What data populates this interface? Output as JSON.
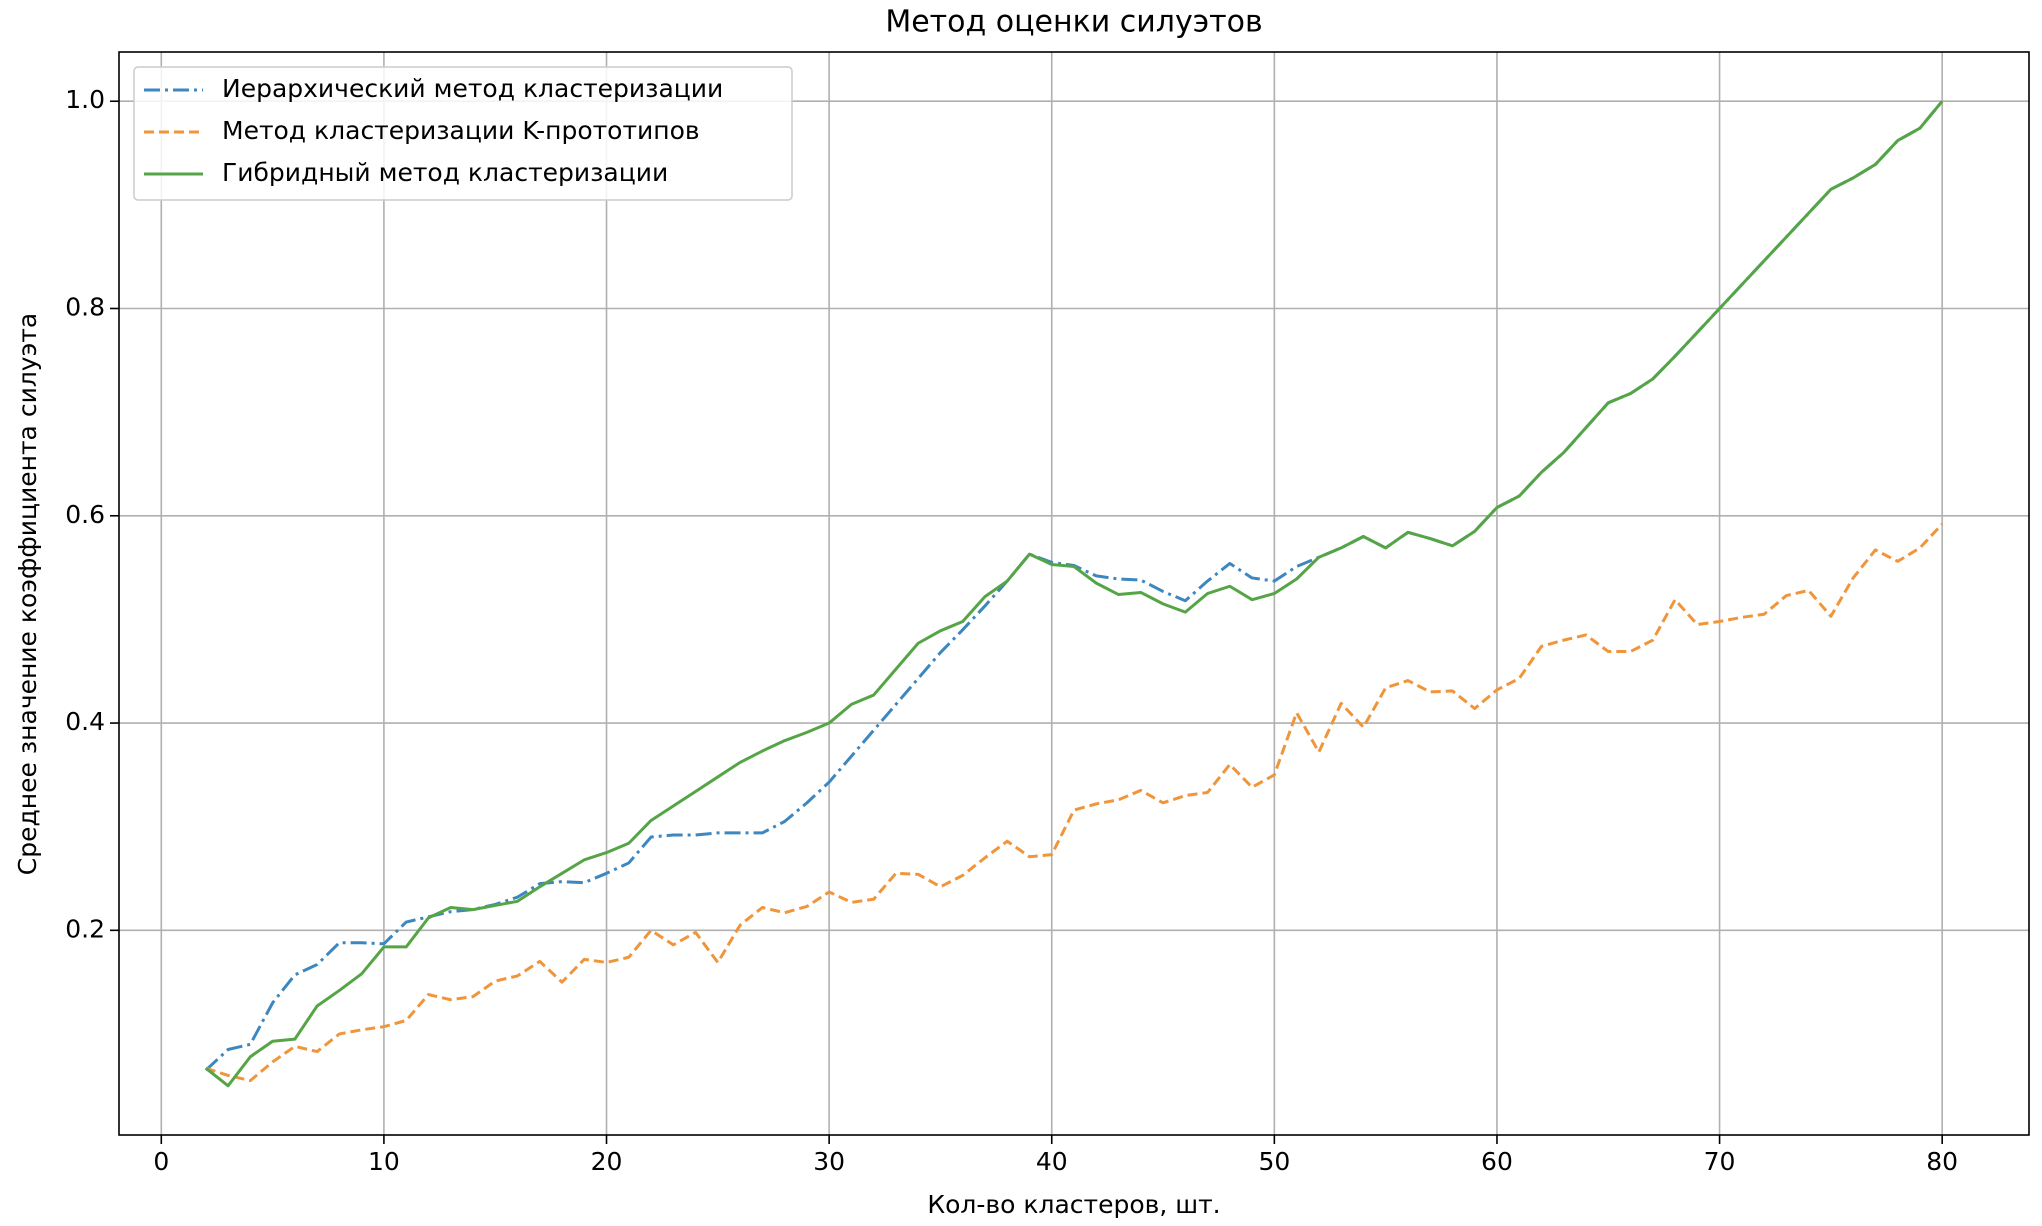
{
  "chart_data": {
    "type": "line",
    "title": "Метод оценки силуэтов",
    "x_label": "Кол-во кластеров, шт.",
    "y_label": "Среднее значение коэффициента силуэта",
    "x": [
      2,
      3,
      4,
      5,
      6,
      7,
      8,
      9,
      10,
      11,
      12,
      13,
      14,
      15,
      16,
      17,
      18,
      19,
      20,
      21,
      22,
      23,
      24,
      25,
      26,
      27,
      28,
      29,
      30,
      31,
      32,
      33,
      34,
      35,
      36,
      37,
      38,
      39,
      40,
      41,
      42,
      43,
      44,
      45,
      46,
      47,
      48,
      49,
      50,
      51,
      52,
      53,
      54,
      55,
      56,
      57,
      58,
      59,
      60,
      61,
      62,
      63,
      64,
      65,
      66,
      67,
      68,
      69,
      70,
      71,
      72,
      73,
      74,
      75,
      76,
      77,
      78,
      79,
      80
    ],
    "series": [
      {
        "name": "Иерархический метод кластеризации",
        "color": "#3d87c0",
        "linestyle": "dashdot",
        "values": [
          0.065,
          0.085,
          0.09,
          0.13,
          0.157,
          0.167,
          0.188,
          0.188,
          0.187,
          0.208,
          0.213,
          0.218,
          0.22,
          0.225,
          0.232,
          0.245,
          0.247,
          0.246,
          0.255,
          0.265,
          0.29,
          0.292,
          0.292,
          0.294,
          0.294,
          0.294,
          0.305,
          0.323,
          0.343,
          0.368,
          0.393,
          0.418,
          0.443,
          0.468,
          0.49,
          0.513,
          0.537,
          0.563,
          0.555,
          0.552,
          0.542,
          0.539,
          0.538,
          0.527,
          0.518,
          0.537,
          0.554,
          0.54,
          0.537,
          0.551,
          0.56,
          0.569,
          0.58,
          0.569,
          0.584,
          0.578,
          0.571,
          0.585,
          0.608,
          0.619,
          0.642,
          0.661,
          0.685,
          0.709,
          0.718,
          0.732,
          0.754,
          0.777,
          0.8,
          0.823,
          0.846,
          0.869,
          0.892,
          0.915,
          0.926,
          0.939,
          0.962,
          0.974,
          1.0
        ]
      },
      {
        "name": "Метод кластеризации K-прототипов",
        "color": "#f0953a",
        "linestyle": "dashed",
        "values": [
          0.067,
          0.06,
          0.055,
          0.073,
          0.088,
          0.083,
          0.1,
          0.104,
          0.107,
          0.113,
          0.138,
          0.133,
          0.136,
          0.151,
          0.156,
          0.17,
          0.15,
          0.172,
          0.169,
          0.174,
          0.2,
          0.186,
          0.198,
          0.169,
          0.205,
          0.222,
          0.217,
          0.223,
          0.237,
          0.227,
          0.23,
          0.255,
          0.254,
          0.242,
          0.253,
          0.27,
          0.286,
          0.271,
          0.273,
          0.316,
          0.322,
          0.326,
          0.335,
          0.323,
          0.33,
          0.333,
          0.36,
          0.338,
          0.35,
          0.41,
          0.372,
          0.419,
          0.396,
          0.434,
          0.441,
          0.43,
          0.431,
          0.414,
          0.432,
          0.443,
          0.474,
          0.48,
          0.485,
          0.469,
          0.469,
          0.48,
          0.519,
          0.495,
          0.498,
          0.502,
          0.505,
          0.523,
          0.528,
          0.503,
          0.54,
          0.567,
          0.556,
          0.569,
          0.592
        ]
      },
      {
        "name": "Гибридный метод кластеризации",
        "color": "#55a546",
        "linestyle": "solid",
        "values": [
          0.067,
          0.05,
          0.078,
          0.093,
          0.095,
          0.127,
          0.142,
          0.158,
          0.184,
          0.184,
          0.212,
          0.222,
          0.22,
          0.224,
          0.228,
          0.242,
          0.255,
          0.268,
          0.275,
          0.284,
          0.306,
          0.32,
          0.334,
          0.348,
          0.362,
          0.373,
          0.383,
          0.391,
          0.4,
          0.418,
          0.427,
          0.452,
          0.477,
          0.489,
          0.498,
          0.522,
          0.537,
          0.563,
          0.553,
          0.551,
          0.535,
          0.524,
          0.526,
          0.515,
          0.507,
          0.525,
          0.532,
          0.519,
          0.525,
          0.539,
          0.56,
          0.569,
          0.58,
          0.569,
          0.584,
          0.578,
          0.571,
          0.585,
          0.608,
          0.619,
          0.642,
          0.661,
          0.685,
          0.709,
          0.718,
          0.732,
          0.754,
          0.777,
          0.8,
          0.823,
          0.846,
          0.869,
          0.892,
          0.915,
          0.926,
          0.939,
          0.962,
          0.974,
          1.0
        ]
      }
    ],
    "xlim": [
      -1.9,
      83.9
    ],
    "ylim": [
      0.0025,
      1.0475
    ],
    "xticks": [
      0,
      10,
      20,
      30,
      40,
      50,
      60,
      70,
      80
    ],
    "yticks": [
      0.2,
      0.4,
      0.6,
      0.8,
      {
        "value": 1.0,
        "label": "1.0"
      }
    ],
    "grid": true,
    "legend": "upper left"
  }
}
